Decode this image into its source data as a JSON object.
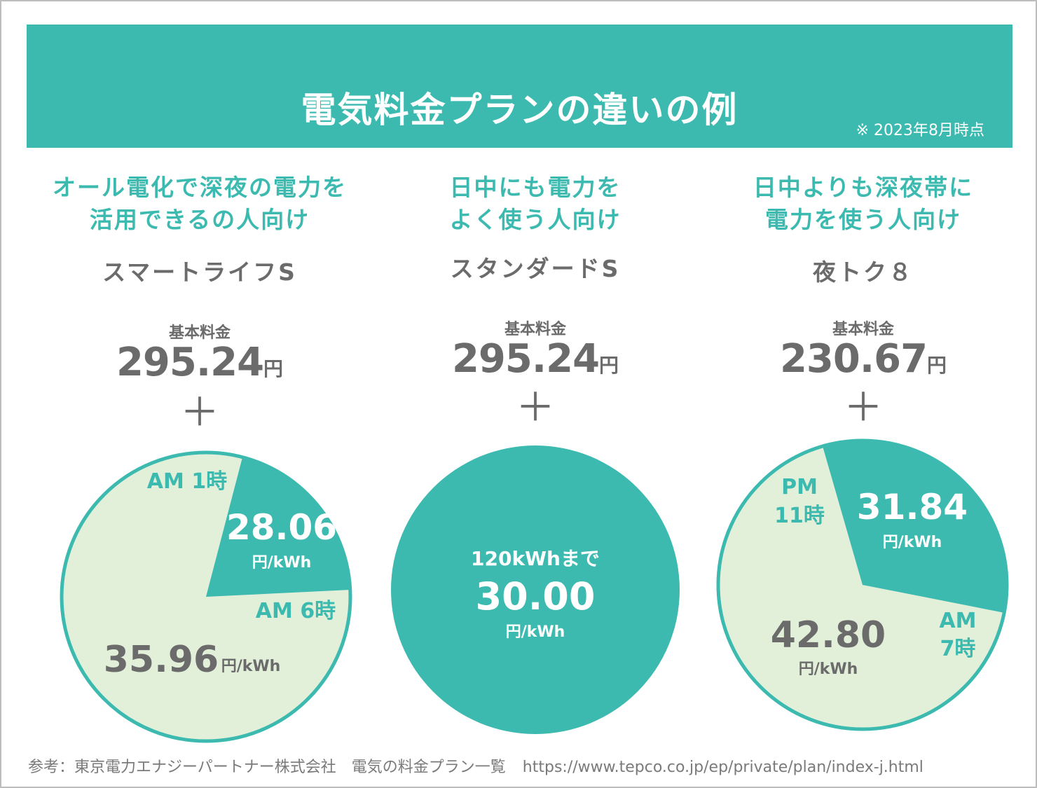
{
  "header": {
    "title": "電気料金プランの違いの例",
    "note": "※ 2023年8月時点"
  },
  "plans": [
    {
      "target_line1": "オール電化で深夜の電力を",
      "target_line2": "活用できるの人向け",
      "name": "スマートライフS",
      "base_label": "基本料金",
      "base_price": "295.24",
      "base_unit": "円",
      "plus": "＋",
      "pie": {
        "boundary_start": "AM 1時",
        "boundary_end": "AM 6時",
        "small_rate": "28.06",
        "large_rate": "35.96",
        "unit": "円/kWh"
      }
    },
    {
      "target_line1": "日中にも電力を",
      "target_line2": "よく使う人向け",
      "name": "スタンダードS",
      "base_label": "基本料金",
      "base_price": "295.24",
      "base_unit": "円",
      "plus": "＋",
      "pie": {
        "condition": "120kWhまで",
        "rate": "30.00",
        "unit": "円/kWh"
      }
    },
    {
      "target_line1": "日中よりも深夜帯に",
      "target_line2": "電力を使う人向け",
      "name": "夜トク８",
      "base_label": "基本料金",
      "base_price": "230.67",
      "base_unit": "円",
      "plus": "＋",
      "pie": {
        "boundary_start_line1": "PM",
        "boundary_start_line2": "11時",
        "boundary_end_line1": "AM",
        "boundary_end_line2": "7時",
        "small_rate": "31.84",
        "large_rate": "42.80",
        "unit": "円/kWh"
      }
    }
  ],
  "colors": {
    "teal": "#3cbab0",
    "cream": "#e2f0da",
    "gray_text": "#6b6b6b",
    "white": "#ffffff"
  },
  "footer": {
    "source": "参考：東京電力エナジーパートナー株式会社　電気の料金プラン一覧",
    "url": "https://www.tepco.co.jp/ep/private/plan/index-j.html"
  }
}
